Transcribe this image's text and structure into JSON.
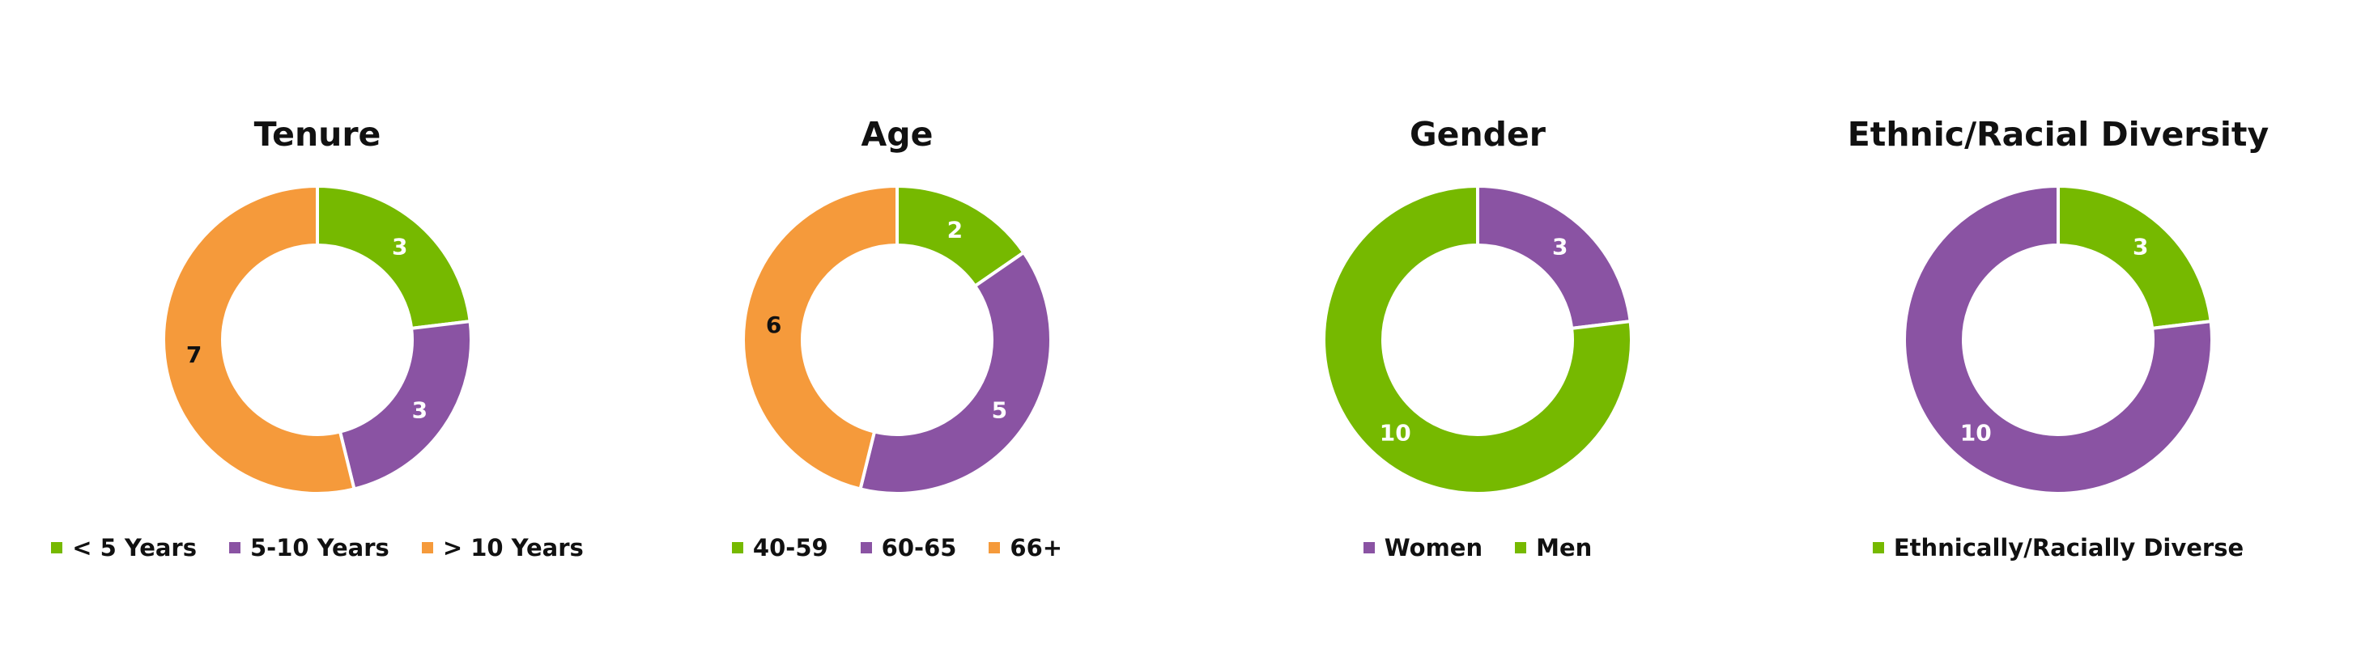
{
  "colors": {
    "green": "#76b900",
    "purple": "#8a53a3",
    "orange": "#f59a3b",
    "label_light": "#ffffff",
    "label_dark": "#111111"
  },
  "chart_data": [
    {
      "type": "pie",
      "style": "donut",
      "title": "Tenure",
      "legend_placement": "bottom",
      "categories": [
        "< 5 Years",
        "5-10 Years",
        "> 10 Years"
      ],
      "values": [
        3,
        3,
        7
      ],
      "colors": [
        "#76b900",
        "#8a53a3",
        "#f59a3b"
      ],
      "label_colors": [
        "#ffffff",
        "#ffffff",
        "#111111"
      ]
    },
    {
      "type": "pie",
      "style": "donut",
      "title": "Age",
      "legend_placement": "bottom",
      "categories": [
        "40-59",
        "60-65",
        "66+"
      ],
      "values": [
        2,
        5,
        6
      ],
      "colors": [
        "#76b900",
        "#8a53a3",
        "#f59a3b"
      ],
      "label_colors": [
        "#ffffff",
        "#ffffff",
        "#111111"
      ]
    },
    {
      "type": "pie",
      "style": "donut",
      "title": "Gender",
      "legend_placement": "bottom",
      "categories": [
        "Women",
        "Men"
      ],
      "values": [
        3,
        10
      ],
      "colors": [
        "#8a53a3",
        "#76b900"
      ],
      "label_colors": [
        "#ffffff",
        "#ffffff"
      ]
    },
    {
      "type": "pie",
      "style": "donut",
      "title": "Ethnic/Racial Diversity",
      "legend_placement": "bottom",
      "categories": [
        "Ethnically/Racially Diverse",
        ""
      ],
      "values": [
        3,
        10
      ],
      "colors": [
        "#76b900",
        "#8a53a3"
      ],
      "label_colors": [
        "#ffffff",
        "#ffffff"
      ]
    }
  ]
}
